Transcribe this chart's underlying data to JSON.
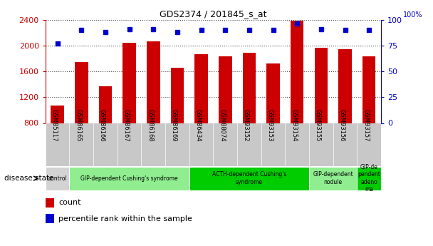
{
  "title": "GDS2374 / 201845_s_at",
  "samples": [
    "GSM85117",
    "GSM86165",
    "GSM86166",
    "GSM86167",
    "GSM86168",
    "GSM86169",
    "GSM86434",
    "GSM88074",
    "GSM93152",
    "GSM93153",
    "GSM93154",
    "GSM93155",
    "GSM93156",
    "GSM93157"
  ],
  "counts": [
    1070,
    1740,
    1370,
    2040,
    2060,
    1660,
    1870,
    1830,
    1890,
    1720,
    2380,
    1960,
    1940,
    1830
  ],
  "percentiles": [
    77,
    90,
    88,
    91,
    91,
    88,
    90,
    90,
    90,
    90,
    96,
    91,
    90,
    90
  ],
  "bar_color": "#cc0000",
  "dot_color": "#0000cc",
  "ylim_left": [
    800,
    2400
  ],
  "ylim_right": [
    0,
    100
  ],
  "yticks_left": [
    800,
    1200,
    1600,
    2000,
    2400
  ],
  "yticks_right": [
    0,
    25,
    50,
    75,
    100
  ],
  "disease_groups": [
    {
      "label": "control",
      "start": 0,
      "end": 1,
      "color": "#d3d3d3"
    },
    {
      "label": "GIP-dependent Cushing's syndrome",
      "start": 1,
      "end": 6,
      "color": "#90ee90"
    },
    {
      "label": "ACTH-dependent Cushing's\nsyndrome",
      "start": 6,
      "end": 11,
      "color": "#00cc00"
    },
    {
      "label": "GIP-dependent\nnodule",
      "start": 11,
      "end": 13,
      "color": "#90ee90"
    },
    {
      "label": "GIP-de\npendent\nadeno\nma",
      "start": 13,
      "end": 14,
      "color": "#00cc00"
    }
  ],
  "left_axis_color": "#cc0000",
  "right_axis_color": "#0000cc",
  "sample_bg_color": "#c8c8c8",
  "background_color": "#ffffff",
  "bar_width": 0.55
}
